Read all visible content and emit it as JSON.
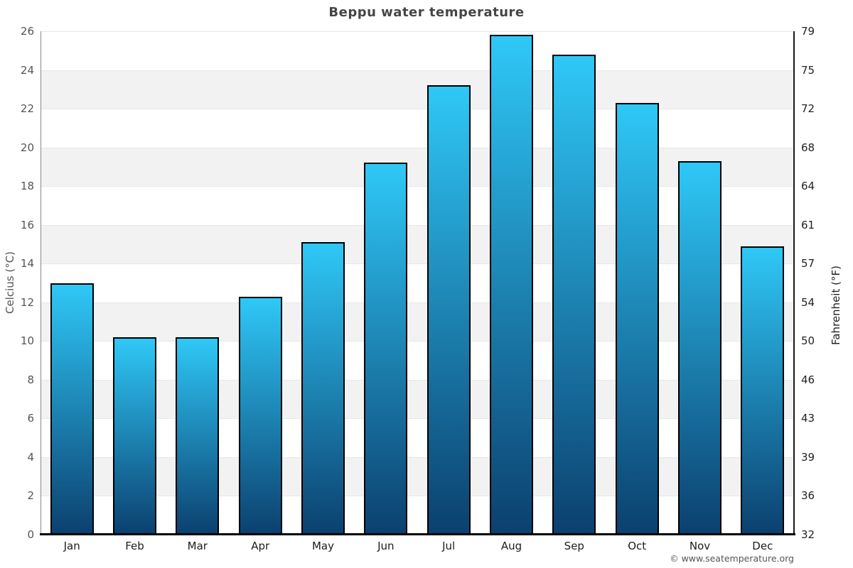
{
  "header": {
    "title": "Beppu water temperature"
  },
  "footer": {
    "copyright": "© www.seatemperature.org"
  },
  "chart_data": {
    "type": "bar",
    "title": "Beppu water temperature",
    "categories": [
      "Jan",
      "Feb",
      "Mar",
      "Apr",
      "May",
      "Jun",
      "Jul",
      "Aug",
      "Sep",
      "Oct",
      "Nov",
      "Dec"
    ],
    "values": [
      13.0,
      10.2,
      10.2,
      12.3,
      15.1,
      19.2,
      23.2,
      25.8,
      24.8,
      22.3,
      19.3,
      14.9
    ],
    "xlabel": "",
    "ylabel_left": "Celcius (°C)",
    "ylabel_right": "Fahrenheit (°F)",
    "ylim": [
      0,
      26
    ],
    "yticks_left": [
      26,
      24,
      22,
      20,
      18,
      16,
      14,
      12,
      10,
      8,
      6,
      4,
      2,
      0
    ],
    "yticks_right": [
      79,
      75,
      72,
      68,
      64,
      61,
      57,
      54,
      50,
      46,
      43,
      39,
      36,
      32
    ],
    "grid": "alternating-bands-every-2C",
    "legend": "none",
    "colors": {
      "bar_gradient_top": "#2fc8f7",
      "bar_gradient_bottom": "#0b406f",
      "bar_border": "#000000",
      "band_shade": "#f2f2f2",
      "band_plain": "#ffffff",
      "gridline": "#e7e7e7",
      "axis_left_line": "#888888",
      "axis_right_line": "#1a1a1a",
      "axis_bottom_line": "#000000",
      "title_text": "#454545",
      "tick_left_text": "#555555",
      "tick_right_text": "#222222",
      "month_text": "#1c1c1c",
      "copyright_text": "#555555"
    }
  }
}
